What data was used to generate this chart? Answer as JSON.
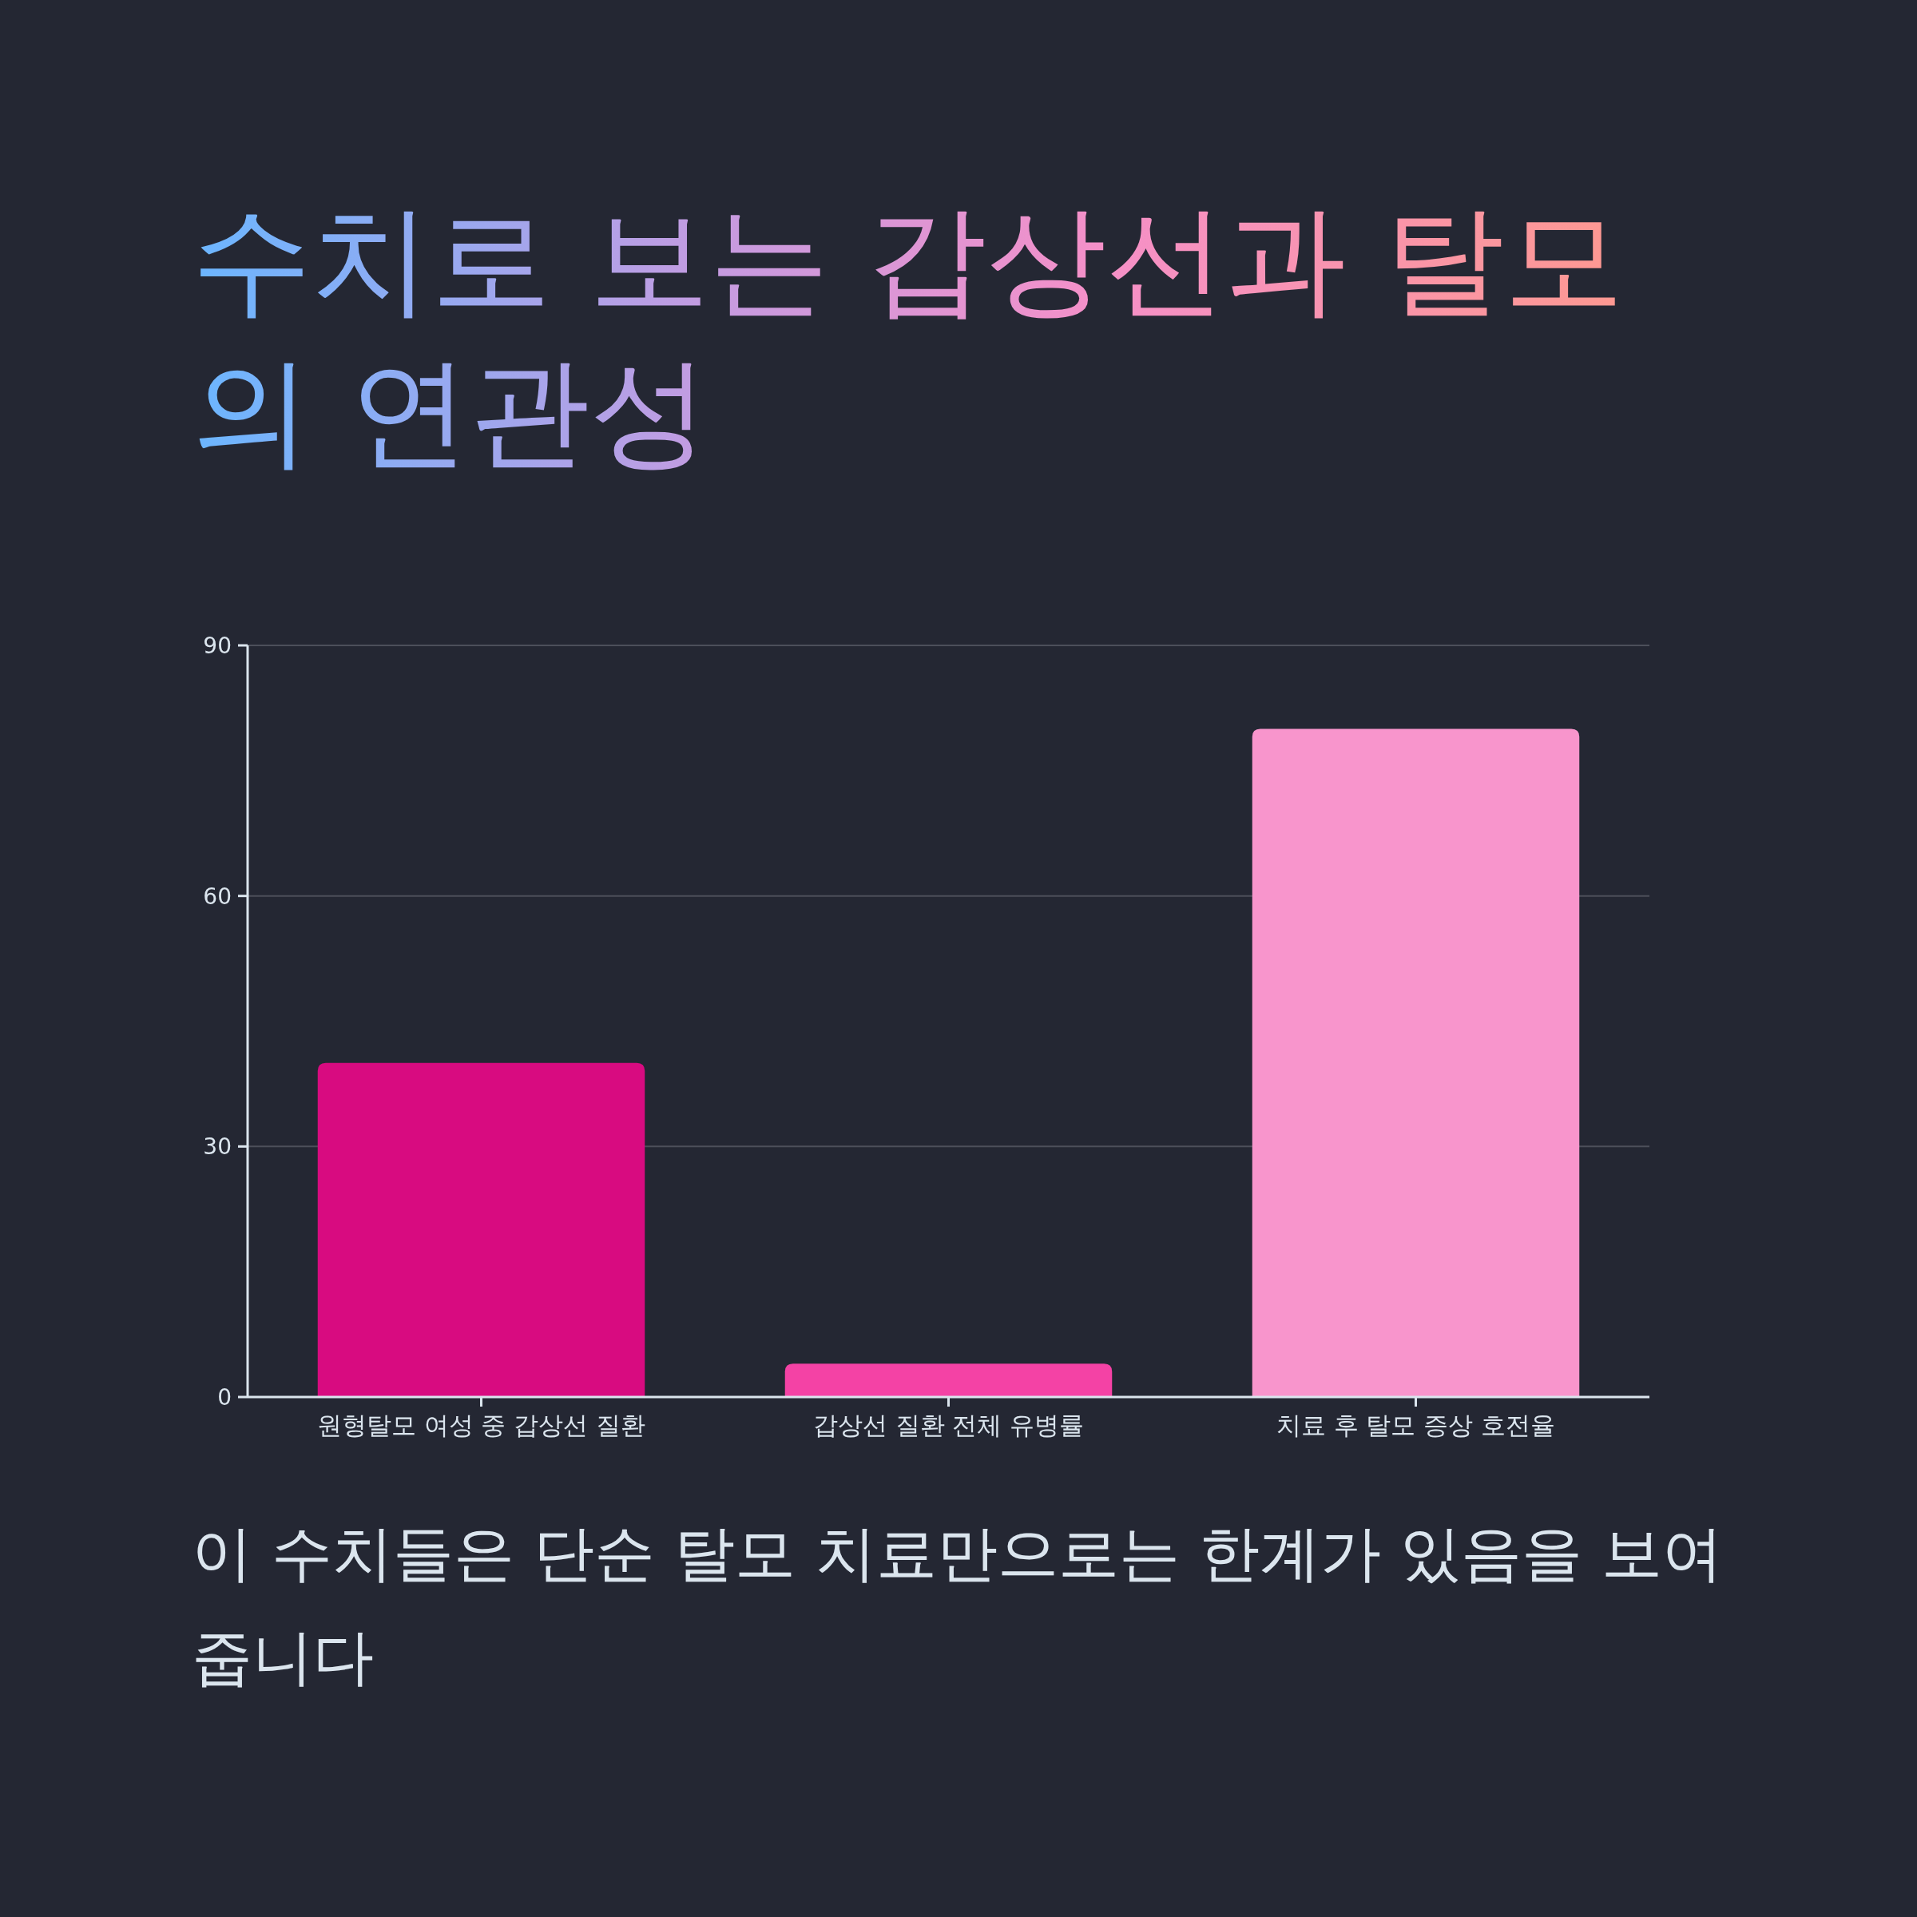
{
  "chart_data": {
    "type": "bar",
    "title": "수치로 보는 갑상선과 탈모의 연관성",
    "categories": [
      "원형탈모 여성 중 갑상선 질환",
      "갑상선 질환 전체 유병률",
      "치료 후 탈모 증상 호전율"
    ],
    "values": [
      40,
      4,
      80
    ],
    "colors": [
      "#d80b80",
      "#f442a5",
      "#f895cc"
    ],
    "ylim": [
      0,
      90
    ],
    "yticks": [
      0,
      30,
      60,
      90
    ],
    "grid": "y",
    "annotations": [
      "이 수치들은 단순 탈모 치료만으로는 한계가 있음을 보여줍니다"
    ]
  }
}
